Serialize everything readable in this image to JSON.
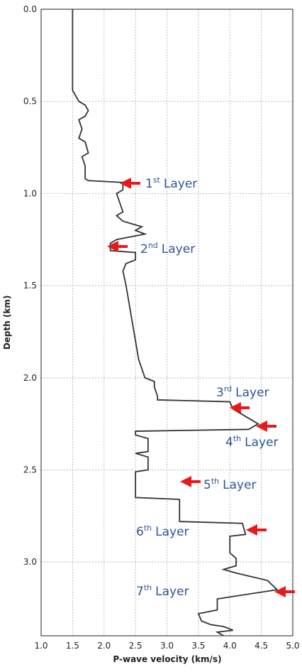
{
  "chart_data": {
    "type": "line",
    "xlabel": "P-wave velocity (km/s)",
    "ylabel": "Depth (km)",
    "x": [
      1.5,
      1.5,
      1.55,
      1.6,
      1.7,
      1.75,
      1.7,
      1.6,
      1.65,
      1.6,
      1.7,
      1.75,
      1.65,
      1.7,
      1.7,
      1.75,
      2.3,
      2.3,
      2.2,
      2.25,
      2.3,
      2.2,
      2.3,
      2.6,
      2.5,
      2.65,
      2.2,
      2.1,
      2.1,
      2.5,
      2.5,
      2.35,
      2.3,
      2.35,
      2.4,
      2.45,
      2.5,
      2.55,
      2.6,
      2.65,
      2.8,
      2.8,
      2.85,
      2.85,
      4.0,
      4.05,
      4.2,
      4.45,
      4.3,
      2.5,
      2.5,
      2.7,
      2.7,
      2.5,
      2.7,
      2.7,
      2.5,
      2.5,
      3.2,
      3.2,
      4.2,
      4.25,
      4.0,
      4.0,
      4.1,
      4.1,
      3.9,
      4.1,
      4.6,
      4.75,
      3.8,
      3.8,
      3.5,
      3.55,
      3.7,
      3.9,
      4.05,
      3.8,
      3.9
    ],
    "values": [
      0.0,
      0.44,
      0.47,
      0.5,
      0.52,
      0.55,
      0.58,
      0.6,
      0.65,
      0.7,
      0.72,
      0.78,
      0.8,
      0.85,
      0.92,
      0.93,
      0.94,
      0.98,
      1.0,
      1.05,
      1.1,
      1.12,
      1.15,
      1.18,
      1.2,
      1.22,
      1.25,
      1.27,
      1.31,
      1.32,
      1.36,
      1.38,
      1.42,
      1.5,
      1.6,
      1.7,
      1.8,
      1.9,
      1.95,
      2.0,
      2.02,
      2.05,
      2.1,
      2.12,
      2.13,
      2.17,
      2.2,
      2.25,
      2.28,
      2.29,
      2.31,
      2.33,
      2.4,
      2.41,
      2.43,
      2.5,
      2.51,
      2.65,
      2.66,
      2.78,
      2.79,
      2.85,
      2.86,
      2.95,
      2.98,
      3.02,
      3.04,
      3.06,
      3.1,
      3.15,
      3.2,
      3.26,
      3.28,
      3.32,
      3.34,
      3.35,
      3.37,
      3.38,
      3.4
    ],
    "color": "#333333",
    "xlim": [
      1.0,
      5.0
    ],
    "xticks": [
      {
        "value": 1,
        "label": "1.0"
      },
      {
        "value": 1.5,
        "label": "1.5"
      },
      {
        "value": 2,
        "label": "2.0"
      },
      {
        "value": 2.5,
        "label": "2.5"
      },
      {
        "value": 3,
        "label": "3.0"
      },
      {
        "value": 3.5,
        "label": "3.5"
      },
      {
        "value": 4,
        "label": "4.0"
      },
      {
        "value": 4.5,
        "label": "4.5"
      },
      {
        "value": 5,
        "label": "5.0"
      }
    ],
    "ylim": [
      0,
      3.4
    ],
    "yticks": [
      {
        "value": 0,
        "label": "0.0"
      },
      {
        "value": 0.5,
        "label": "0.5"
      },
      {
        "value": 1,
        "label": "1.0"
      },
      {
        "value": 1.5,
        "label": "1.5"
      },
      {
        "value": 2,
        "label": "2.0"
      },
      {
        "value": 2.5,
        "label": "2.5"
      },
      {
        "value": 3,
        "label": "3.0"
      }
    ],
    "y_inverted": true,
    "grid": true,
    "annotations": [
      {
        "num": "1",
        "sup": "st",
        "label": "Layer"
      },
      {
        "num": "2",
        "sup": "nd",
        "label": "Layer"
      },
      {
        "num": "3",
        "sup": "rd",
        "label": "Layer"
      },
      {
        "num": "4",
        "sup": "th",
        "label": "Layer"
      },
      {
        "num": "5",
        "sup": "th",
        "label": "Layer"
      },
      {
        "num": "6",
        "sup": "th",
        "label": "Layer"
      },
      {
        "num": "7",
        "sup": "th",
        "label": "Layer"
      }
    ]
  }
}
